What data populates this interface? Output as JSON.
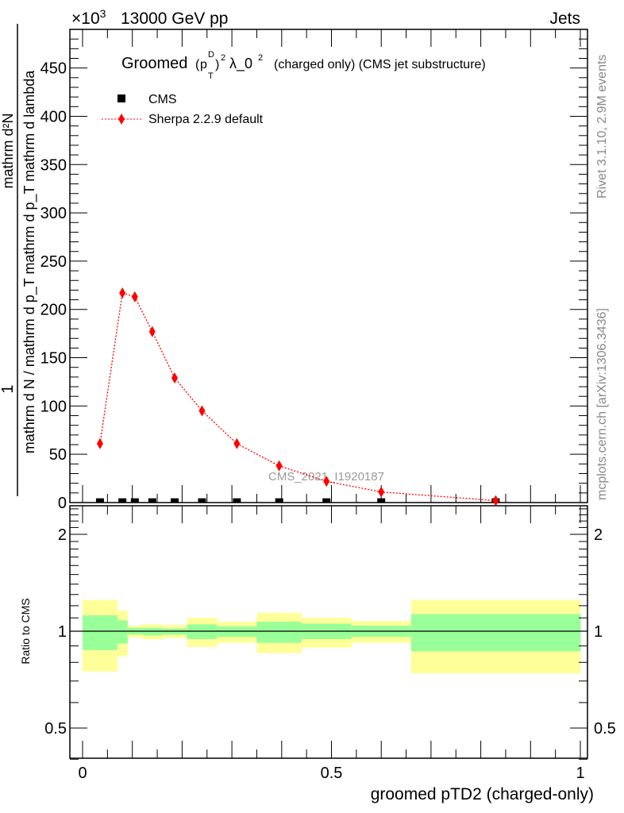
{
  "header": {
    "energy_label": "13000 GeV pp",
    "category_label": "Jets",
    "exponent_prefix": "×10",
    "exponent_power": "3"
  },
  "side_labels": {
    "rivet": "Rivet 3.1.10,  2.9M events",
    "mcplots": "mcplots.cern.ch [arXiv:1306.3436]"
  },
  "watermark": "CMS_2021_I1920187",
  "colors": {
    "mc": "#ff0000",
    "data": "#000000",
    "band_1sigma": "#99ff99",
    "band_2sigma": "#ffff99"
  },
  "chart_data": [
    {
      "type": "scatter",
      "title_main": "Groomed",
      "title_formula": {
        "p": "p",
        "sub": "T",
        "sup": "D",
        "pow": "2",
        "lambda": "λ_0",
        "lambda_pow": "2"
      },
      "title_rest": "(charged only) (CMS jet substructure)",
      "ylabel_numerator": "mathrm d²N",
      "ylabel_one": "1",
      "ylabel_denominator": "mathrm d N / mathrm d p_T mathrm d p_T mathrm d lambda",
      "ylim": [
        0,
        490
      ],
      "yticks": [
        0,
        50,
        100,
        150,
        200,
        250,
        300,
        350,
        400,
        450
      ],
      "xlim": [
        -0.025,
        1.02
      ],
      "legend": [
        {
          "label": "CMS"
        },
        {
          "label": "Sherpa 2.2.9 default"
        }
      ],
      "legend_placement": "top-left",
      "bin_edges": [
        0,
        0.07,
        0.09,
        0.12,
        0.16,
        0.21,
        0.27,
        0.35,
        0.44,
        0.54,
        0.66,
        1.0
      ],
      "series": [
        {
          "name": "CMS",
          "x": [
            0.035,
            0.08,
            0.105,
            0.14,
            0.185,
            0.24,
            0.31,
            0.395,
            0.49,
            0.6,
            0.83
          ],
          "values": [
            0.3,
            0.3,
            0.3,
            0.3,
            0.3,
            0.3,
            0.3,
            0.3,
            0.3,
            0.3,
            0.3
          ]
        },
        {
          "name": "Sherpa 2.2.9 default",
          "x": [
            0.035,
            0.08,
            0.105,
            0.14,
            0.185,
            0.24,
            0.31,
            0.395,
            0.49,
            0.6,
            0.83
          ],
          "values": [
            61,
            217,
            213,
            177,
            129,
            95,
            61,
            38,
            22,
            11,
            2
          ]
        }
      ]
    },
    {
      "type": "area",
      "ylabel": "Ratio to CMS",
      "xlabel": "groomed pTD2 (charged-only)",
      "yscale": "log",
      "ylim": [
        0.4,
        2.45
      ],
      "yticks": [
        0.5,
        1,
        2
      ],
      "ytick_labels": [
        "0.5",
        "1",
        "2"
      ],
      "xticks": [
        0,
        0.5,
        1
      ],
      "xtick_labels": [
        "0",
        "0.5",
        "1"
      ],
      "bin_edges": [
        0,
        0.07,
        0.09,
        0.12,
        0.16,
        0.21,
        0.27,
        0.35,
        0.44,
        0.54,
        0.66,
        1.0
      ],
      "band_2sigma_up": [
        1.25,
        1.16,
        1.04,
        1.05,
        1.045,
        1.1,
        1.07,
        1.14,
        1.1,
        1.075,
        1.25
      ],
      "band_1sigma_up": [
        1.12,
        1.08,
        1.025,
        1.025,
        1.02,
        1.05,
        1.035,
        1.07,
        1.055,
        1.04,
        1.13
      ],
      "band_1sigma_down": [
        0.873,
        0.915,
        0.977,
        0.97,
        0.976,
        0.945,
        0.96,
        0.92,
        0.945,
        0.96,
        0.866
      ],
      "band_2sigma_down": [
        0.75,
        0.835,
        0.957,
        0.943,
        0.952,
        0.893,
        0.92,
        0.855,
        0.89,
        0.92,
        0.74
      ]
    }
  ]
}
